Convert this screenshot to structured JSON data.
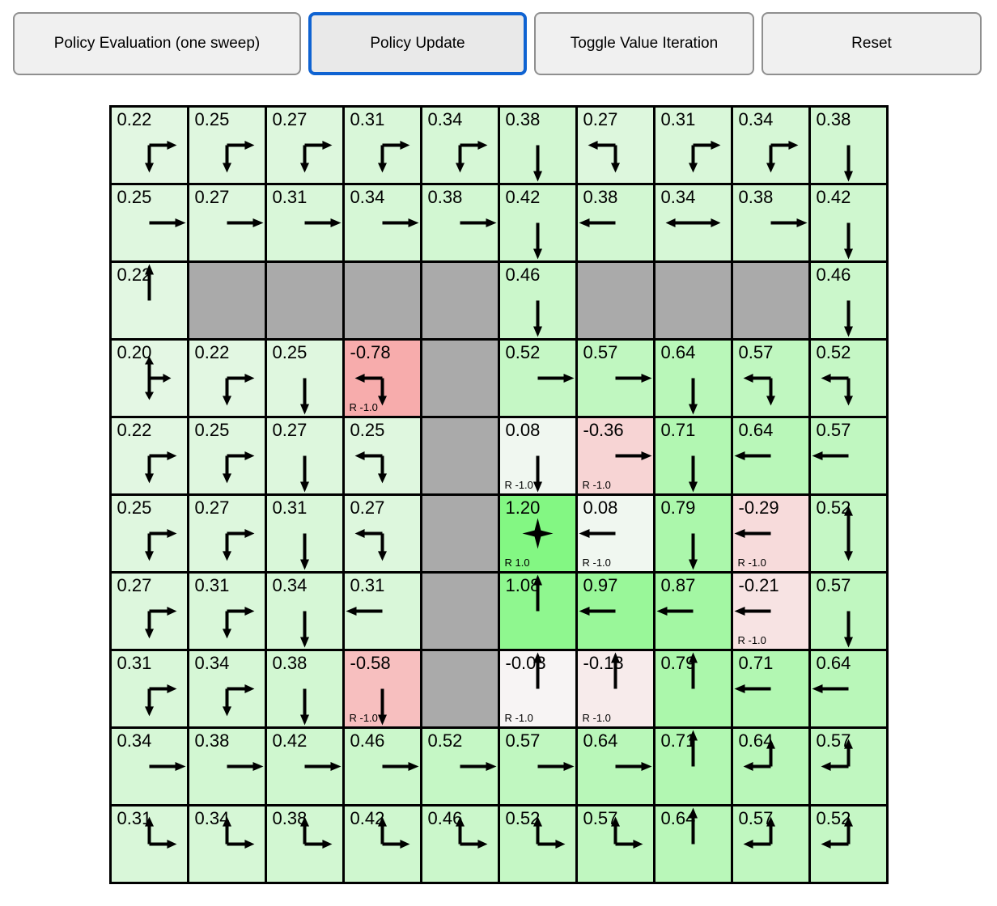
{
  "toolbar": {
    "buttons": [
      {
        "label": "Policy Evaluation (one sweep)",
        "active": false
      },
      {
        "label": "Policy Update",
        "active": true
      },
      {
        "label": "Toggle Value Iteration",
        "active": false
      },
      {
        "label": "Reset",
        "active": false
      }
    ]
  },
  "palette": {
    "wall_color": "#aaaaaa",
    "grid_line_color": "#000000",
    "arrow_color": "#000000",
    "text_color": "#000000",
    "focus_ring_color": "#0f63d2",
    "button_bg": "#f0f0f0",
    "button_active_bg": "#e9e9e9",
    "button_border": "#8f8f8f",
    "goal_cell_color": "#87f587",
    "negative_cell_color": "#f7adad",
    "value_tint_scale": 100,
    "value_tint_dim": 0.97
  },
  "grid": {
    "rows": 10,
    "cols": 10,
    "cells": [
      [
        {
          "v": "0.22",
          "policy": [
            "down",
            "right"
          ]
        },
        {
          "v": "0.25",
          "policy": [
            "down",
            "right"
          ]
        },
        {
          "v": "0.27",
          "policy": [
            "down",
            "right"
          ]
        },
        {
          "v": "0.31",
          "policy": [
            "down",
            "right"
          ]
        },
        {
          "v": "0.34",
          "policy": [
            "down",
            "right"
          ]
        },
        {
          "v": "0.38",
          "policy": [
            "down"
          ]
        },
        {
          "v": "0.27",
          "policy": [
            "left",
            "down"
          ]
        },
        {
          "v": "0.31",
          "policy": [
            "down",
            "right"
          ]
        },
        {
          "v": "0.34",
          "policy": [
            "down",
            "right"
          ]
        },
        {
          "v": "0.38",
          "policy": [
            "down"
          ]
        }
      ],
      [
        {
          "v": "0.25",
          "policy": [
            "right"
          ]
        },
        {
          "v": "0.27",
          "policy": [
            "right"
          ]
        },
        {
          "v": "0.31",
          "policy": [
            "right"
          ]
        },
        {
          "v": "0.34",
          "policy": [
            "right"
          ]
        },
        {
          "v": "0.38",
          "policy": [
            "right"
          ]
        },
        {
          "v": "0.42",
          "policy": [
            "down"
          ]
        },
        {
          "v": "0.38",
          "policy": [
            "left"
          ]
        },
        {
          "v": "0.34",
          "policy": [
            "left",
            "right"
          ]
        },
        {
          "v": "0.38",
          "policy": [
            "right"
          ]
        },
        {
          "v": "0.42",
          "policy": [
            "down"
          ]
        }
      ],
      [
        {
          "v": "0.22",
          "policy": [
            "up"
          ]
        },
        {
          "wall": true
        },
        {
          "wall": true
        },
        {
          "wall": true
        },
        {
          "wall": true
        },
        {
          "v": "0.46",
          "policy": [
            "down"
          ]
        },
        {
          "wall": true
        },
        {
          "wall": true
        },
        {
          "wall": true
        },
        {
          "v": "0.46",
          "policy": [
            "down"
          ]
        }
      ],
      [
        {
          "v": "0.20",
          "policy": [
            "up",
            "down",
            "right"
          ]
        },
        {
          "v": "0.22",
          "policy": [
            "down",
            "right"
          ]
        },
        {
          "v": "0.25",
          "policy": [
            "down"
          ]
        },
        {
          "v": "-0.78",
          "policy": [
            "left",
            "down"
          ],
          "r": "R -1.0"
        },
        {
          "wall": true
        },
        {
          "v": "0.52",
          "policy": [
            "right"
          ]
        },
        {
          "v": "0.57",
          "policy": [
            "right"
          ]
        },
        {
          "v": "0.64",
          "policy": [
            "down"
          ]
        },
        {
          "v": "0.57",
          "policy": [
            "left",
            "down"
          ]
        },
        {
          "v": "0.52",
          "policy": [
            "left",
            "down"
          ]
        }
      ],
      [
        {
          "v": "0.22",
          "policy": [
            "down",
            "right"
          ]
        },
        {
          "v": "0.25",
          "policy": [
            "down",
            "right"
          ]
        },
        {
          "v": "0.27",
          "policy": [
            "down"
          ]
        },
        {
          "v": "0.25",
          "policy": [
            "left",
            "down"
          ]
        },
        {
          "wall": true
        },
        {
          "v": "0.08",
          "policy": [
            "down"
          ],
          "r": "R -1.0"
        },
        {
          "v": "-0.36",
          "policy": [
            "right"
          ],
          "r": "R -1.0"
        },
        {
          "v": "0.71",
          "policy": [
            "down"
          ]
        },
        {
          "v": "0.64",
          "policy": [
            "left"
          ]
        },
        {
          "v": "0.57",
          "policy": [
            "left"
          ]
        }
      ],
      [
        {
          "v": "0.25",
          "policy": [
            "down",
            "right"
          ]
        },
        {
          "v": "0.27",
          "policy": [
            "down",
            "right"
          ]
        },
        {
          "v": "0.31",
          "policy": [
            "down"
          ]
        },
        {
          "v": "0.27",
          "policy": [
            "left",
            "down"
          ]
        },
        {
          "wall": true
        },
        {
          "v": "1.20",
          "policy": [
            "up",
            "down",
            "left",
            "right"
          ],
          "r": "R 1.0",
          "goal": true
        },
        {
          "v": "0.08",
          "policy": [
            "left"
          ],
          "r": "R -1.0"
        },
        {
          "v": "0.79",
          "policy": [
            "down"
          ]
        },
        {
          "v": "-0.29",
          "policy": [
            "left"
          ],
          "r": "R -1.0"
        },
        {
          "v": "0.52",
          "policy": [
            "up",
            "down"
          ]
        }
      ],
      [
        {
          "v": "0.27",
          "policy": [
            "down",
            "right"
          ]
        },
        {
          "v": "0.31",
          "policy": [
            "down",
            "right"
          ]
        },
        {
          "v": "0.34",
          "policy": [
            "down"
          ]
        },
        {
          "v": "0.31",
          "policy": [
            "left"
          ]
        },
        {
          "wall": true
        },
        {
          "v": "1.08",
          "policy": [
            "up"
          ]
        },
        {
          "v": "0.97",
          "policy": [
            "left"
          ]
        },
        {
          "v": "0.87",
          "policy": [
            "left"
          ]
        },
        {
          "v": "-0.21",
          "policy": [
            "left"
          ],
          "r": "R -1.0"
        },
        {
          "v": "0.57",
          "policy": [
            "down"
          ]
        }
      ],
      [
        {
          "v": "0.31",
          "policy": [
            "down",
            "right"
          ]
        },
        {
          "v": "0.34",
          "policy": [
            "down",
            "right"
          ]
        },
        {
          "v": "0.38",
          "policy": [
            "down"
          ]
        },
        {
          "v": "-0.58",
          "policy": [
            "down"
          ],
          "r": "R -1.0"
        },
        {
          "wall": true
        },
        {
          "v": "-0.03",
          "policy": [
            "up"
          ],
          "r": "R -1.0"
        },
        {
          "v": "-0.13",
          "policy": [
            "up"
          ],
          "r": "R -1.0"
        },
        {
          "v": "0.79",
          "policy": [
            "up"
          ]
        },
        {
          "v": "0.71",
          "policy": [
            "left"
          ]
        },
        {
          "v": "0.64",
          "policy": [
            "left"
          ]
        }
      ],
      [
        {
          "v": "0.34",
          "policy": [
            "right"
          ]
        },
        {
          "v": "0.38",
          "policy": [
            "right"
          ]
        },
        {
          "v": "0.42",
          "policy": [
            "right"
          ]
        },
        {
          "v": "0.46",
          "policy": [
            "right"
          ]
        },
        {
          "v": "0.52",
          "policy": [
            "right"
          ]
        },
        {
          "v": "0.57",
          "policy": [
            "right"
          ]
        },
        {
          "v": "0.64",
          "policy": [
            "right"
          ]
        },
        {
          "v": "0.71",
          "policy": [
            "up"
          ]
        },
        {
          "v": "0.64",
          "policy": [
            "up",
            "left"
          ]
        },
        {
          "v": "0.57",
          "policy": [
            "up",
            "left"
          ]
        }
      ],
      [
        {
          "v": "0.31",
          "policy": [
            "up",
            "right"
          ]
        },
        {
          "v": "0.34",
          "policy": [
            "up",
            "right"
          ]
        },
        {
          "v": "0.38",
          "policy": [
            "up",
            "right"
          ]
        },
        {
          "v": "0.42",
          "policy": [
            "up",
            "right"
          ]
        },
        {
          "v": "0.46",
          "policy": [
            "up",
            "right"
          ]
        },
        {
          "v": "0.52",
          "policy": [
            "up",
            "right"
          ]
        },
        {
          "v": "0.57",
          "policy": [
            "up",
            "right"
          ]
        },
        {
          "v": "0.64",
          "policy": [
            "up"
          ]
        },
        {
          "v": "0.57",
          "policy": [
            "up",
            "left"
          ]
        },
        {
          "v": "0.52",
          "policy": [
            "up",
            "left"
          ]
        }
      ]
    ]
  }
}
